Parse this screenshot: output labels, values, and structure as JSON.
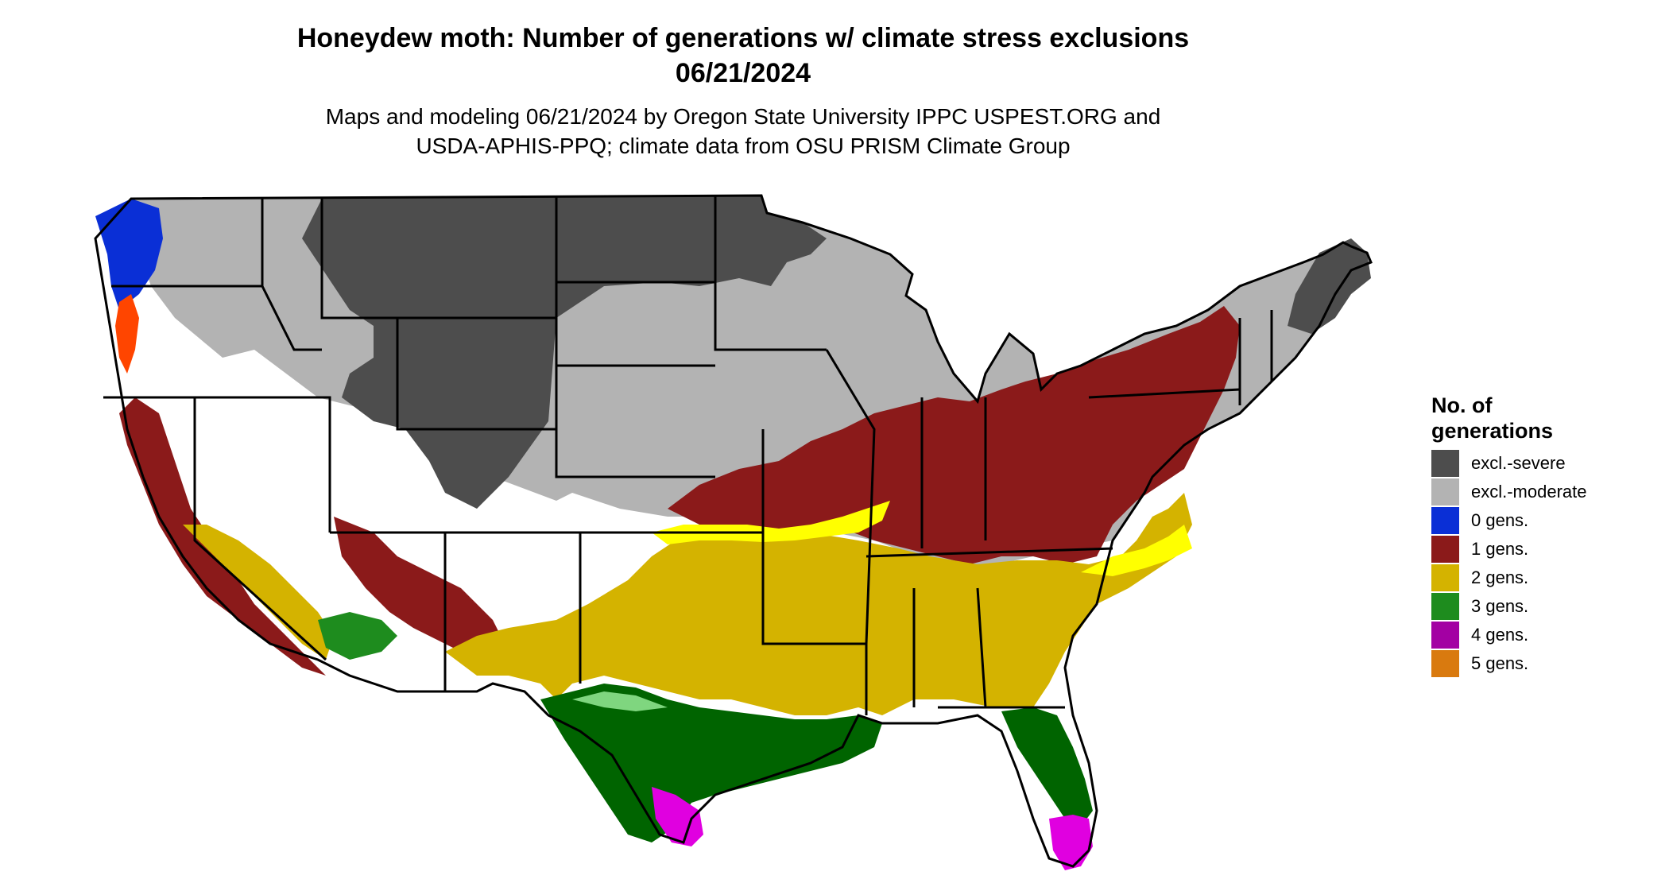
{
  "title": {
    "line1": "Honeydew moth: Number of generations w/ climate stress exclusions",
    "line2": "06/21/2024"
  },
  "subtitle": {
    "line1": "Maps and modeling 06/21/2024 by Oregon State University IPPC USPEST.ORG and",
    "line2": "USDA-APHIS-PPQ; climate data from OSU PRISM Climate Group"
  },
  "legend": {
    "title_line1": "No. of",
    "title_line2": "generations",
    "items": [
      {
        "label": "excl.-severe",
        "color": "#4d4d4d"
      },
      {
        "label": "excl.-moderate",
        "color": "#b3b3b3"
      },
      {
        "label": "0 gens.",
        "color": "#0a2fd6"
      },
      {
        "label": "1 gens.",
        "color": "#8b1a1a"
      },
      {
        "label": "2 gens.",
        "color": "#d4b300"
      },
      {
        "label": "3 gens.",
        "color": "#1e8c1e"
      },
      {
        "label": "4 gens.",
        "color": "#a300a3"
      },
      {
        "label": "5 gens.",
        "color": "#d97a0f"
      }
    ]
  },
  "map_colors": {
    "border": "#000000",
    "yellow_bright": "#ffff00",
    "light_green": "#7fd67f",
    "dark_green": "#006400",
    "magenta": "#e000e0",
    "orange_red": "#ff4500",
    "dark_red": "#8b1a1a"
  }
}
